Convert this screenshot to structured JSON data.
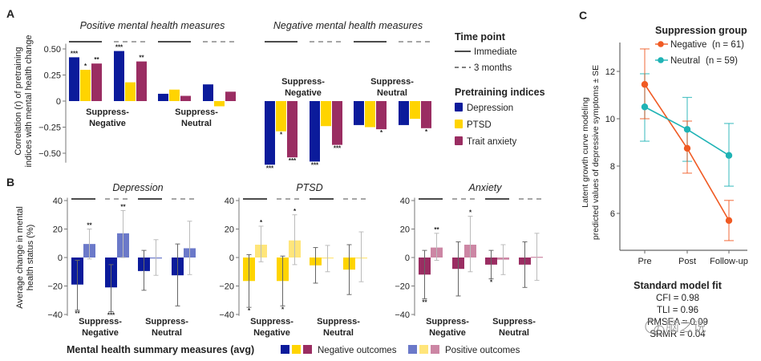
{
  "figure": {
    "panel_labels": [
      "A",
      "B",
      "C"
    ]
  },
  "chart_data": [
    {
      "id": "A",
      "type": "bar",
      "panel_label": "A",
      "ylabel_lines": [
        "Correlation (r) of pretraining",
        "indices with mental health change"
      ],
      "ylim": [
        -0.6,
        0.55
      ],
      "yticks": [
        0.5,
        0.25,
        0,
        -0.25,
        -0.5
      ],
      "ytick_labels": [
        "0.50",
        "0.25",
        "0",
        "−0.25",
        "−0.50"
      ],
      "grid": false,
      "subplots": [
        {
          "title": "Positive mental health measures",
          "groups": [
            {
              "label_lines": [
                "Suppress-",
                "Negative"
              ],
              "timepoints": [
                {
                  "time": "Immediate",
                  "values": [
                    0.42,
                    0.3,
                    0.36
                  ],
                  "sig": [
                    "***",
                    "*",
                    "**"
                  ]
                },
                {
                  "time": "3 months",
                  "values": [
                    0.48,
                    0.18,
                    0.38
                  ],
                  "sig": [
                    "***",
                    "",
                    "**"
                  ]
                }
              ]
            },
            {
              "label_lines": [
                "Suppress-",
                "Neutral"
              ],
              "timepoints": [
                {
                  "time": "Immediate",
                  "values": [
                    0.07,
                    0.11,
                    0.05
                  ],
                  "sig": [
                    "",
                    "",
                    ""
                  ]
                },
                {
                  "time": "3 months",
                  "values": [
                    0.16,
                    -0.05,
                    0.09
                  ],
                  "sig": [
                    "",
                    "",
                    ""
                  ]
                }
              ]
            }
          ]
        },
        {
          "title": "Negative mental health measures",
          "groups": [
            {
              "label_lines": [
                "Suppress-",
                "Negative"
              ],
              "timepoints": [
                {
                  "time": "Immediate",
                  "values": [
                    -0.61,
                    -0.29,
                    -0.54
                  ],
                  "sig": [
                    "***",
                    "*",
                    "***"
                  ]
                },
                {
                  "time": "3 months",
                  "values": [
                    -0.58,
                    -0.24,
                    -0.42
                  ],
                  "sig": [
                    "***",
                    "",
                    "***"
                  ]
                }
              ]
            },
            {
              "label_lines": [
                "Suppress-",
                "Neutral"
              ],
              "timepoints": [
                {
                  "time": "Immediate",
                  "values": [
                    -0.23,
                    -0.25,
                    -0.27
                  ],
                  "sig": [
                    "",
                    "",
                    "*"
                  ]
                },
                {
                  "time": "3 months",
                  "values": [
                    -0.23,
                    -0.17,
                    -0.26
                  ],
                  "sig": [
                    "",
                    "",
                    "*"
                  ]
                }
              ]
            }
          ]
        }
      ],
      "legend": {
        "placement": "right",
        "time_title": "Time point",
        "time_items": [
          {
            "label": "Immediate",
            "style": "solid"
          },
          {
            "label": "3 months",
            "style": "dashed"
          }
        ],
        "index_title": "Pretraining indices",
        "index_items": [
          {
            "label": "Depression",
            "color": "#0b1b9b"
          },
          {
            "label": "PTSD",
            "color": "#ffd400"
          },
          {
            "label": "Trait anxiety",
            "color": "#9a2d62"
          }
        ]
      }
    },
    {
      "id": "B",
      "type": "bar",
      "panel_label": "B",
      "ylabel_lines": [
        "Average change in mental",
        "health status (%)"
      ],
      "ylim": [
        -40,
        40
      ],
      "yticks": [
        40,
        20,
        0,
        -20,
        -40
      ],
      "ytick_labels": [
        "40",
        "20",
        "0",
        "−20",
        "−40"
      ],
      "grid": false,
      "subplots": [
        {
          "title": "Depression",
          "neg_color": "#0b1b9b",
          "pos_color": "#6b79c9",
          "groups": [
            {
              "label_lines": [
                "Suppress-",
                "Negative"
              ],
              "timepoints": [
                {
                  "time": "Immediate",
                  "negative": {
                    "value": -19,
                    "err": [
                      -37,
                      -2
                    ],
                    "sig": "**"
                  },
                  "positive": {
                    "value": 9.5,
                    "err": [
                      -1,
                      20
                    ],
                    "sig": "**"
                  }
                },
                {
                  "time": "3 months",
                  "negative": {
                    "value": -21,
                    "err": [
                      -38,
                      -5
                    ],
                    "sig": "***"
                  },
                  "positive": {
                    "value": 17,
                    "err": [
                      0,
                      33
                    ],
                    "sig": "**"
                  }
                }
              ]
            },
            {
              "label_lines": [
                "Suppress-",
                "Neutral"
              ],
              "timepoints": [
                {
                  "time": "Immediate",
                  "negative": {
                    "value": -9.5,
                    "err": [
                      -23,
                      5
                    ],
                    "sig": ""
                  },
                  "positive": {
                    "value": 0,
                    "err": [
                      -12.5,
                      12.5
                    ],
                    "sig": ""
                  }
                },
                {
                  "time": "3 months",
                  "negative": {
                    "value": -12.5,
                    "err": [
                      -34,
                      9.5
                    ],
                    "sig": ""
                  },
                  "positive": {
                    "value": 6.5,
                    "err": [
                      -12,
                      25.5
                    ],
                    "sig": ""
                  }
                }
              ]
            }
          ]
        },
        {
          "title": "PTSD",
          "neg_color": "#ffd400",
          "pos_color": "#ffe57a",
          "groups": [
            {
              "label_lines": [
                "Suppress-",
                "Negative"
              ],
              "timepoints": [
                {
                  "time": "Immediate",
                  "negative": {
                    "value": -16.5,
                    "err": [
                      -35,
                      2
                    ],
                    "sig": "*"
                  },
                  "positive": {
                    "value": 9,
                    "err": [
                      -3,
                      22
                    ],
                    "sig": "*"
                  }
                },
                {
                  "time": "3 months",
                  "negative": {
                    "value": -16.5,
                    "err": [
                      -34,
                      1
                    ],
                    "sig": "*"
                  },
                  "positive": {
                    "value": 12,
                    "err": [
                      -5,
                      30
                    ],
                    "sig": "*"
                  }
                }
              ]
            },
            {
              "label_lines": [
                "Suppress-",
                "Neutral"
              ],
              "timepoints": [
                {
                  "time": "Immediate",
                  "negative": {
                    "value": -5.5,
                    "err": [
                      -18,
                      7
                    ],
                    "sig": ""
                  },
                  "positive": {
                    "value": -0.5,
                    "err": [
                      -10,
                      8.5
                    ],
                    "sig": ""
                  }
                },
                {
                  "time": "3 months",
                  "negative": {
                    "value": -8.5,
                    "err": [
                      -26,
                      9
                    ],
                    "sig": ""
                  },
                  "positive": {
                    "value": 0,
                    "err": [
                      -17,
                      18
                    ],
                    "sig": ""
                  }
                }
              ]
            }
          ]
        },
        {
          "title": "Anxiety",
          "neg_color": "#9a2d62",
          "pos_color": "#cc86a4",
          "groups": [
            {
              "label_lines": [
                "Suppress-",
                "Negative"
              ],
              "timepoints": [
                {
                  "time": "Immediate",
                  "negative": {
                    "value": -12,
                    "err": [
                      -29,
                      5
                    ],
                    "sig": "**"
                  },
                  "positive": {
                    "value": 7,
                    "err": [
                      -2,
                      17
                    ],
                    "sig": "**"
                  }
                },
                {
                  "time": "3 months",
                  "negative": {
                    "value": -8,
                    "err": [
                      -27,
                      11
                    ],
                    "sig": ""
                  },
                  "positive": {
                    "value": 9,
                    "err": [
                      -10,
                      29
                    ],
                    "sig": "*"
                  }
                }
              ]
            },
            {
              "label_lines": [
                "Suppress-",
                "Neutral"
              ],
              "timepoints": [
                {
                  "time": "Immediate",
                  "negative": {
                    "value": -5,
                    "err": [
                      -15,
                      5
                    ],
                    "sig": "*"
                  },
                  "positive": {
                    "value": -1.5,
                    "err": [
                      -12,
                      9
                    ],
                    "sig": ""
                  }
                },
                {
                  "time": "3 months",
                  "negative": {
                    "value": -5,
                    "err": [
                      -21,
                      11
                    ],
                    "sig": ""
                  },
                  "positive": {
                    "value": 0.5,
                    "err": [
                      -16,
                      17
                    ],
                    "sig": ""
                  }
                }
              ]
            }
          ]
        }
      ],
      "legend": {
        "placement": "bottom",
        "title": "Mental health summary measures (avg)",
        "neg_colors": [
          "#0b1b9b",
          "#ffd400",
          "#9a2d62"
        ],
        "neg_label": "Negative outcomes",
        "pos_colors": [
          "#6b79c9",
          "#ffe57a",
          "#cc86a4"
        ],
        "pos_label": "Positive outcomes"
      }
    },
    {
      "id": "C",
      "type": "line",
      "panel_label": "C",
      "ylabel_lines": [
        "Latent growth curve modeling",
        "predicted values of depressive symptoms ± SE"
      ],
      "x": [
        "Pre",
        "Post",
        "Follow-up"
      ],
      "ylim": [
        4.45,
        13.2
      ],
      "yticks": [
        12,
        10,
        8,
        6
      ],
      "grid": false,
      "legend": {
        "title": "Suppression group",
        "placement": "top-right"
      },
      "series": [
        {
          "name": "Negative",
          "n_label": "(n = 61)",
          "color": "#f05a23",
          "values": [
            11.45,
            8.75,
            5.7
          ],
          "err_low": [
            10.0,
            7.7,
            4.85
          ],
          "err_high": [
            12.95,
            9.9,
            6.55
          ]
        },
        {
          "name": "Neutral",
          "n_label": "(n = 59)",
          "color": "#1fb3b5",
          "values": [
            10.5,
            9.55,
            8.45
          ],
          "err_low": [
            9.05,
            8.2,
            7.15
          ],
          "err_high": [
            11.9,
            10.9,
            9.8
          ]
        }
      ],
      "fit": {
        "title": "Standard model fit",
        "lines": [
          "CFI = 0.98",
          "TLI = 0.96",
          "RMSEA = 0.09",
          "SRMR = 0.04"
        ]
      }
    }
  ],
  "watermark": "脑之说"
}
